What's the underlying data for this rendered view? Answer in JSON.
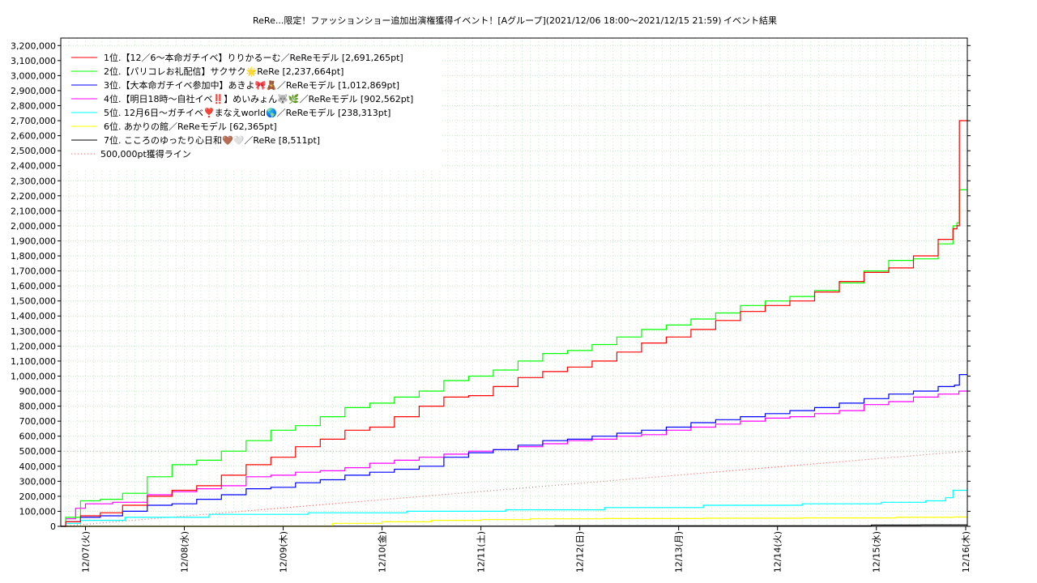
{
  "chart_data": {
    "type": "line",
    "title": "ReRe...限定！ファッションショー追加出演権獲得イベント！[Aグループ](2021/12/06 18:00〜2021/12/15 21:59)",
    "subtitle": "イベント結果",
    "grid": true,
    "legend_position": "top-left",
    "xlabel": "",
    "ylabel": "",
    "x_start": 0,
    "x_end": 9.17,
    "x_ticks": [
      {
        "x": 0.25,
        "label": "12/07(火)"
      },
      {
        "x": 1.25,
        "label": "12/08(水)"
      },
      {
        "x": 2.25,
        "label": "12/09(木)"
      },
      {
        "x": 3.25,
        "label": "12/10(金)"
      },
      {
        "x": 4.25,
        "label": "12/11(土)"
      },
      {
        "x": 5.25,
        "label": "12/12(日)"
      },
      {
        "x": 6.25,
        "label": "12/13(月)"
      },
      {
        "x": 7.25,
        "label": "12/14(火)"
      },
      {
        "x": 8.25,
        "label": "12/15(水)"
      },
      {
        "x": 9.25,
        "label": "12/16(木)"
      }
    ],
    "ylim": [
      0,
      3250000
    ],
    "y_ticks": [
      {
        "v": 0,
        "label": "0"
      },
      {
        "v": 100000,
        "label": "100,000"
      },
      {
        "v": 200000,
        "label": "200,000"
      },
      {
        "v": 300000,
        "label": "300,000"
      },
      {
        "v": 400000,
        "label": "400,000"
      },
      {
        "v": 500000,
        "label": "500,000"
      },
      {
        "v": 600000,
        "label": "600,000"
      },
      {
        "v": 700000,
        "label": "700,000"
      },
      {
        "v": 800000,
        "label": "800,000"
      },
      {
        "v": 900000,
        "label": "900,000"
      },
      {
        "v": 1000000,
        "label": "1,000,000"
      },
      {
        "v": 1100000,
        "label": "1,100,000"
      },
      {
        "v": 1200000,
        "label": "1,200,000"
      },
      {
        "v": 1300000,
        "label": "1,300,000"
      },
      {
        "v": 1400000,
        "label": "1,400,000"
      },
      {
        "v": 1500000,
        "label": "1,500,000"
      },
      {
        "v": 1600000,
        "label": "1,600,000"
      },
      {
        "v": 1700000,
        "label": "1,700,000"
      },
      {
        "v": 1800000,
        "label": "1,800,000"
      },
      {
        "v": 1900000,
        "label": "1,900,000"
      },
      {
        "v": 2000000,
        "label": "2,000,000"
      },
      {
        "v": 2100000,
        "label": "2,100,000"
      },
      {
        "v": 2200000,
        "label": "2,200,000"
      },
      {
        "v": 2300000,
        "label": "2,300,000"
      },
      {
        "v": 2400000,
        "label": "2,400,000"
      },
      {
        "v": 2500000,
        "label": "2,500,000"
      },
      {
        "v": 2600000,
        "label": "2,600,000"
      },
      {
        "v": 2700000,
        "label": "2,700,000"
      },
      {
        "v": 2800000,
        "label": "2,800,000"
      },
      {
        "v": 2900000,
        "label": "2,900,000"
      },
      {
        "v": 3000000,
        "label": "3,000,000"
      },
      {
        "v": 3100000,
        "label": "3,100,000"
      },
      {
        "v": 3200000,
        "label": "3,200,000"
      }
    ],
    "series": [
      {
        "name": "1位.【12／6〜本命ガチイベ】りりかるーむ／ReReモデル [2,691,265pt]",
        "color": "#ff0000",
        "style": "solid",
        "x": [
          0,
          0.1,
          0.3,
          0.5,
          0.75,
          1.0,
          1.25,
          1.5,
          1.75,
          2.0,
          2.25,
          2.5,
          2.75,
          3.0,
          3.25,
          3.5,
          3.75,
          4.0,
          4.25,
          4.5,
          4.75,
          5.0,
          5.25,
          5.5,
          5.75,
          6.0,
          6.25,
          6.5,
          6.75,
          7.0,
          7.25,
          7.5,
          7.75,
          8.0,
          8.25,
          8.5,
          8.75,
          9.0,
          9.05,
          9.08,
          9.1,
          9.17
        ],
        "values": [
          0,
          30000,
          70000,
          90000,
          140000,
          200000,
          240000,
          270000,
          340000,
          410000,
          460000,
          530000,
          580000,
          640000,
          660000,
          730000,
          800000,
          860000,
          870000,
          930000,
          990000,
          1030000,
          1060000,
          1100000,
          1160000,
          1220000,
          1260000,
          1310000,
          1370000,
          1430000,
          1470000,
          1500000,
          1560000,
          1630000,
          1690000,
          1720000,
          1800000,
          1910000,
          1980000,
          2000000,
          2700000,
          2700000
        ]
      },
      {
        "name": "2位.【パリコレお礼配信】サクサク🌟ReRe [2,237,664pt]",
        "color": "#00ff00",
        "style": "solid",
        "x": [
          0,
          0.1,
          0.3,
          0.5,
          0.75,
          1.0,
          1.25,
          1.5,
          1.75,
          2.0,
          2.25,
          2.5,
          2.75,
          3.0,
          3.25,
          3.5,
          3.75,
          4.0,
          4.25,
          4.5,
          4.75,
          5.0,
          5.25,
          5.5,
          5.75,
          6.0,
          6.25,
          6.5,
          6.75,
          7.0,
          7.25,
          7.5,
          7.75,
          8.0,
          8.25,
          8.5,
          8.75,
          9.0,
          9.05,
          9.08,
          9.1,
          9.17
        ],
        "values": [
          0,
          60000,
          170000,
          180000,
          220000,
          330000,
          410000,
          440000,
          500000,
          570000,
          640000,
          670000,
          730000,
          790000,
          820000,
          860000,
          900000,
          970000,
          1000000,
          1040000,
          1100000,
          1150000,
          1170000,
          1210000,
          1260000,
          1310000,
          1340000,
          1380000,
          1420000,
          1470000,
          1500000,
          1530000,
          1570000,
          1620000,
          1700000,
          1770000,
          1780000,
          1880000,
          2000000,
          2020000,
          2240000,
          2240000
        ]
      },
      {
        "name": "3位.【大本命ガチイベ参加中】あきよ🎀🧸／ReReモデル [1,012,869pt]",
        "color": "#0000ff",
        "style": "solid",
        "x": [
          0,
          0.1,
          0.3,
          0.5,
          0.75,
          1.0,
          1.25,
          1.5,
          1.75,
          2.0,
          2.25,
          2.5,
          2.75,
          3.0,
          3.25,
          3.5,
          3.75,
          4.0,
          4.25,
          4.5,
          4.75,
          5.0,
          5.25,
          5.5,
          5.75,
          6.0,
          6.25,
          6.5,
          6.75,
          7.0,
          7.25,
          7.5,
          7.75,
          8.0,
          8.25,
          8.5,
          8.75,
          9.0,
          9.08,
          9.1,
          9.17
        ],
        "values": [
          0,
          30000,
          60000,
          70000,
          100000,
          140000,
          150000,
          180000,
          210000,
          250000,
          260000,
          290000,
          310000,
          340000,
          360000,
          380000,
          400000,
          460000,
          490000,
          510000,
          540000,
          570000,
          580000,
          600000,
          620000,
          640000,
          660000,
          690000,
          710000,
          730000,
          750000,
          770000,
          790000,
          820000,
          850000,
          880000,
          900000,
          930000,
          940000,
          1010000,
          1010000
        ]
      },
      {
        "name": "4位.【明日18時〜自社イベ‼️】めいみょん🐺🌿／ReReモデル [902,562pt]",
        "color": "#ff00ff",
        "style": "solid",
        "x": [
          0,
          0.1,
          0.2,
          0.3,
          0.75,
          1.0,
          1.25,
          1.5,
          1.75,
          2.0,
          2.25,
          2.5,
          2.75,
          3.0,
          3.25,
          3.5,
          3.75,
          4.0,
          4.25,
          4.5,
          4.75,
          5.0,
          5.25,
          5.5,
          5.75,
          6.0,
          6.25,
          6.5,
          6.75,
          7.0,
          7.25,
          7.5,
          7.75,
          8.0,
          8.25,
          8.5,
          8.75,
          9.0,
          9.17
        ],
        "values": [
          0,
          50000,
          120000,
          150000,
          160000,
          210000,
          230000,
          250000,
          270000,
          330000,
          340000,
          360000,
          370000,
          390000,
          420000,
          440000,
          460000,
          480000,
          500000,
          510000,
          530000,
          550000,
          570000,
          580000,
          600000,
          610000,
          640000,
          660000,
          680000,
          700000,
          720000,
          730000,
          750000,
          770000,
          810000,
          830000,
          860000,
          880000,
          900000
        ]
      },
      {
        "name": "5位. 12月6日〜ガチイベ❣️まなえworld🌎／ReReモデル [238,313pt]",
        "color": "#00ffff",
        "style": "solid",
        "x": [
          0,
          0.1,
          0.3,
          1.0,
          2.0,
          3.0,
          4.0,
          5.0,
          6.0,
          7.0,
          8.0,
          8.6,
          8.9,
          9.0,
          9.05,
          9.17
        ],
        "values": [
          0,
          20000,
          40000,
          60000,
          80000,
          90000,
          100000,
          110000,
          125000,
          140000,
          150000,
          160000,
          170000,
          190000,
          240000,
          240000
        ]
      },
      {
        "name": "6位. あかりの館／ReReモデル [62,365pt]",
        "color": "#ffff00",
        "style": "solid",
        "x": [
          0,
          2.5,
          3.0,
          3.5,
          4.0,
          4.5,
          5.0,
          6.0,
          7.0,
          8.0,
          8.9,
          9.17
        ],
        "values": [
          0,
          0,
          20000,
          30000,
          40000,
          45000,
          50000,
          52000,
          54000,
          56000,
          60000,
          62000
        ]
      },
      {
        "name": "7位. こころのゆったり心日和🤎🤍／ReRe [8,511pt]",
        "color": "#000000",
        "style": "solid",
        "x": [
          0,
          4.0,
          6.0,
          8.0,
          8.4,
          9.0,
          9.17
        ],
        "values": [
          0,
          1000,
          3000,
          4000,
          8000,
          8500,
          8500
        ]
      },
      {
        "name": "500,000pt獲得ライン",
        "color": "#ff6666",
        "style": "dotted",
        "x": [
          0,
          9.17
        ],
        "values": [
          0,
          500000
        ]
      }
    ],
    "hline_value": 500000,
    "hline_color": "#d8b27a"
  }
}
